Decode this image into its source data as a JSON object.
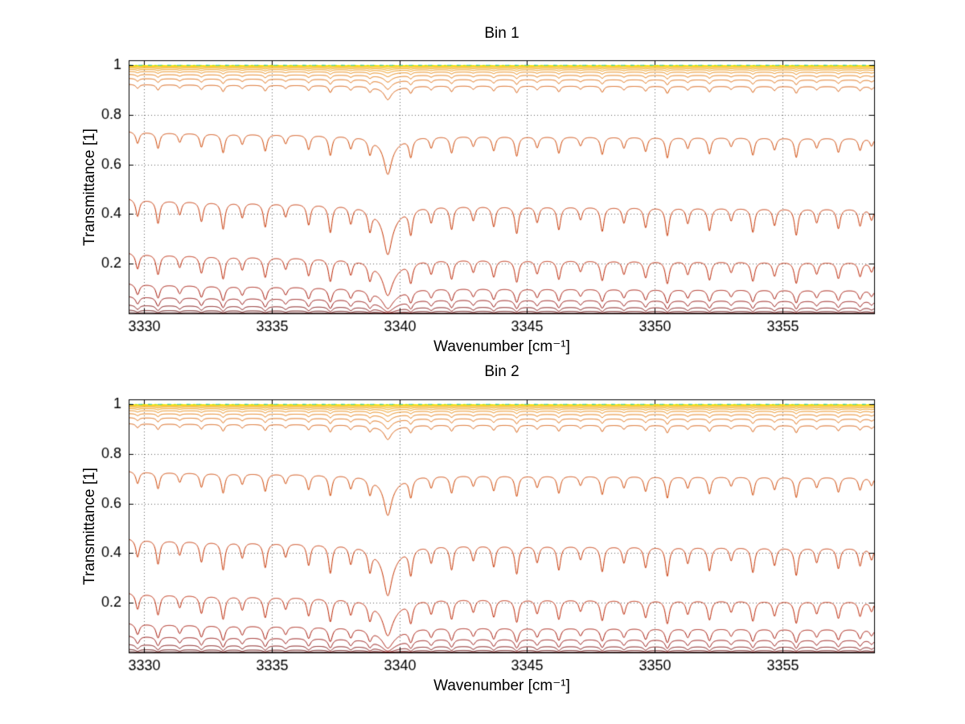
{
  "figure": {
    "background": "#ffffff"
  },
  "chart_data": {
    "type": "line",
    "description": "Two stacked MATLAB-style panels of simulated transmittance spectra; each panel shows a family of Beer-Lambert curves T=exp(-m*tau) for geometrically increasing absorber amounts m, with a strong absorption line near 3339.55 cm-1 and a comb of weaker lines.",
    "grid": {
      "style": "dotted",
      "color": "#666666"
    },
    "axis_color": "#000000",
    "tick_font_px": 18,
    "panels": [
      {
        "title": "Bin 1",
        "xlabel": "Wavenumber [cm⁻¹]",
        "ylabel": "Transmittance [1]",
        "xlim": [
          3329.4,
          3358.6
        ],
        "ylim": [
          0,
          1.02
        ],
        "xticks": [
          "3330",
          "3335",
          "3340",
          "3345",
          "3350",
          "3355"
        ],
        "xtick_vals": [
          3330,
          3335,
          3340,
          3345,
          3350,
          3355
        ],
        "yticks": [
          "0.2",
          "0.4",
          "0.6",
          "0.8",
          "1"
        ],
        "ytick_vals": [
          0.2,
          0.4,
          0.6,
          0.8,
          1
        ],
        "strength_scale": 1.0,
        "continuum": {
          "base": 0.93,
          "slope": 0.12
        }
      },
      {
        "title": "Bin 2",
        "xlabel": "Wavenumber [cm⁻¹]",
        "ylabel": "Transmittance [1]",
        "xlim": [
          3329.4,
          3358.6
        ],
        "ylim": [
          0,
          1.02
        ],
        "xticks": [
          "3330",
          "3335",
          "3340",
          "3345",
          "3350",
          "3355"
        ],
        "xtick_vals": [
          3330,
          3335,
          3340,
          3345,
          3350,
          3355
        ],
        "yticks": [
          "0.2",
          "0.4",
          "0.6",
          "0.8",
          "1"
        ],
        "ytick_vals": [
          0.2,
          0.4,
          0.6,
          0.8,
          1
        ],
        "strength_scale": 1.05,
        "continuum": {
          "base": 0.94,
          "slope": 0.11
        }
      }
    ],
    "absorption_lines": [
      {
        "p": 3329.75,
        "s": 0.2
      },
      {
        "p": 3330.55,
        "s": 0.28
      },
      {
        "p": 3331.4,
        "s": 0.16
      },
      {
        "p": 3332.25,
        "s": 0.24
      },
      {
        "p": 3333.1,
        "s": 0.34
      },
      {
        "p": 3333.85,
        "s": 0.18
      },
      {
        "p": 3334.75,
        "s": 0.3
      },
      {
        "p": 3335.55,
        "s": 0.16
      },
      {
        "p": 3336.45,
        "s": 0.26
      },
      {
        "p": 3337.3,
        "s": 0.36
      },
      {
        "p": 3338.1,
        "s": 0.22
      },
      {
        "p": 3338.85,
        "s": 0.28
      },
      {
        "p": 3339.55,
        "s": 0.55,
        "w": 0.16
      },
      {
        "p": 3339.6,
        "s": 0.2,
        "w": 0.5
      },
      {
        "p": 3340.45,
        "s": 0.34
      },
      {
        "p": 3341.25,
        "s": 0.2
      },
      {
        "p": 3342.05,
        "s": 0.3
      },
      {
        "p": 3342.9,
        "s": 0.18
      },
      {
        "p": 3343.7,
        "s": 0.26
      },
      {
        "p": 3344.6,
        "s": 0.36
      },
      {
        "p": 3345.4,
        "s": 0.2
      },
      {
        "p": 3346.25,
        "s": 0.3
      },
      {
        "p": 3347.1,
        "s": 0.16
      },
      {
        "p": 3347.95,
        "s": 0.32
      },
      {
        "p": 3348.8,
        "s": 0.2
      },
      {
        "p": 3349.65,
        "s": 0.26
      },
      {
        "p": 3350.5,
        "s": 0.38
      },
      {
        "p": 3351.3,
        "s": 0.2
      },
      {
        "p": 3352.15,
        "s": 0.3
      },
      {
        "p": 3353.0,
        "s": 0.16
      },
      {
        "p": 3353.85,
        "s": 0.32
      },
      {
        "p": 3354.7,
        "s": 0.22
      },
      {
        "p": 3355.55,
        "s": 0.36
      },
      {
        "p": 3356.35,
        "s": 0.18
      },
      {
        "p": 3357.2,
        "s": 0.26
      },
      {
        "p": 3358.05,
        "s": 0.22
      },
      {
        "p": 3358.5,
        "s": 0.14
      }
    ],
    "series": [
      {
        "m": 6.0,
        "color": "#400000"
      },
      {
        "m": 4.6,
        "color": "#5e0000"
      },
      {
        "m": 3.6,
        "color": "#780000"
      },
      {
        "m": 2.85,
        "color": "#8f0400"
      },
      {
        "m": 2.25,
        "color": "#a30f00"
      },
      {
        "m": 1.5,
        "color": "#bb2200"
      },
      {
        "m": 0.82,
        "color": "#c63300"
      },
      {
        "m": 0.33,
        "color": "#cf4400"
      },
      {
        "m": 0.085,
        "color": "#d65500"
      },
      {
        "m": 0.058,
        "color": "#de6500"
      },
      {
        "m": 0.04,
        "color": "#e47300"
      },
      {
        "m": 0.027,
        "color": "#e98200"
      },
      {
        "m": 0.018,
        "color": "#ee9100"
      },
      {
        "m": 0.012,
        "color": "#f2a000"
      },
      {
        "m": 0.008,
        "color": "#f5b000"
      },
      {
        "m": 0.005,
        "color": "#f8c000"
      },
      {
        "m": 0.003,
        "color": "#fbd000"
      },
      {
        "m": 0.0018,
        "color": "#fde000"
      },
      {
        "m": 0.001,
        "color": "#f4ed00"
      },
      {
        "m": 0.0005,
        "color": "#9edd00",
        "dash": [
          3,
          5
        ]
      },
      {
        "m": 0.0002,
        "color": "#00c8c8",
        "dash": [
          5,
          7
        ]
      }
    ]
  }
}
